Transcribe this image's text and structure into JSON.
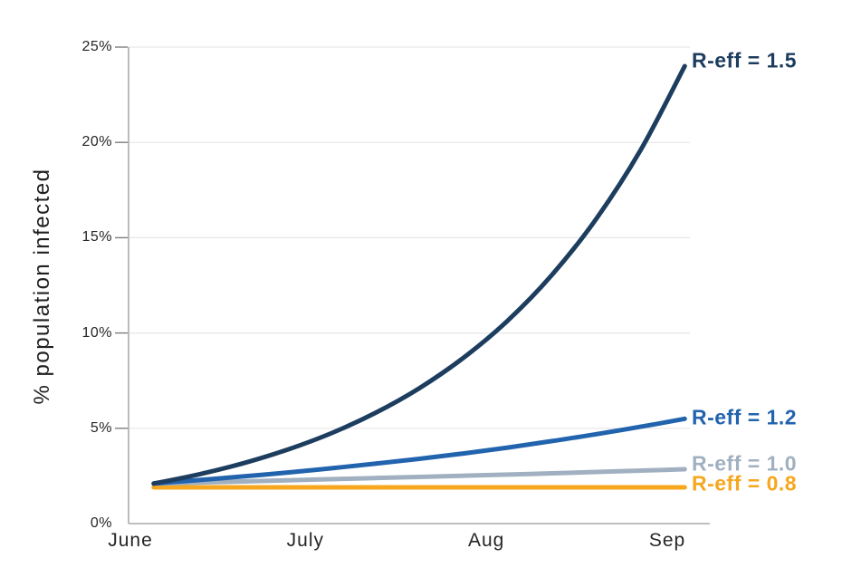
{
  "figure": {
    "background": "#ffffff"
  },
  "chart_data": {
    "type": "line",
    "title": "",
    "xlabel": "",
    "ylabel": "% population infected",
    "x_axis": {
      "unit": "days from June 1",
      "domain_days": [
        0,
        99.6
      ],
      "ticks": [
        {
          "label": "June",
          "day": 0
        },
        {
          "label": "July",
          "day": 30
        },
        {
          "label": "Aug",
          "day": 61
        },
        {
          "label": "Sep",
          "day": 92
        }
      ]
    },
    "y_axis": {
      "ylim": [
        0,
        25
      ],
      "grid": true,
      "ticks": [
        {
          "label": "0%",
          "value": 0
        },
        {
          "label": "5%",
          "value": 5
        },
        {
          "label": "10%",
          "value": 10
        },
        {
          "label": "15%",
          "value": 15
        },
        {
          "label": "20%",
          "value": 20
        },
        {
          "label": "25%",
          "value": 25
        }
      ]
    },
    "legend_position": "labels at line ends (right side)",
    "series": [
      {
        "name": "R-eff = 1.5",
        "color": "#1D3D5F",
        "label_center_y_pct": 24.3,
        "days": [
          4,
          11.58,
          19.17,
          26.75,
          34.33,
          41.92,
          49.5,
          57.08,
          64.67,
          72.25,
          79.83,
          87.42,
          95
        ],
        "values": [
          2.1,
          2.57,
          3.15,
          3.86,
          4.73,
          5.8,
          7.1,
          8.7,
          10.65,
          13.05,
          15.99,
          19.59,
          24.0
        ]
      },
      {
        "name": "R-eff = 1.2",
        "color": "#2263AE",
        "label_center_y_pct": 5.55,
        "days": [
          4,
          11.58,
          19.17,
          26.75,
          34.33,
          41.92,
          49.5,
          57.08,
          64.67,
          72.25,
          79.83,
          87.42,
          95
        ],
        "values": [
          2.1,
          2.28,
          2.47,
          2.67,
          2.9,
          3.14,
          3.4,
          3.68,
          3.99,
          4.33,
          4.69,
          5.08,
          5.5
        ]
      },
      {
        "name": "R-eff = 1.0",
        "color": "#A0B0C0",
        "label_center_y_pct": 3.15,
        "days": [
          4,
          11.58,
          19.17,
          26.75,
          34.33,
          41.92,
          49.5,
          57.08,
          64.67,
          72.25,
          79.83,
          87.42,
          95
        ],
        "values": [
          2.1,
          2.15,
          2.21,
          2.27,
          2.33,
          2.39,
          2.45,
          2.51,
          2.57,
          2.64,
          2.71,
          2.78,
          2.85
        ]
      },
      {
        "name": "R-eff = 0.8",
        "color": "#F6A71E",
        "label_center_y_pct": 2.1,
        "days": [
          4,
          11.58,
          19.17,
          26.75,
          34.33,
          41.92,
          49.5,
          57.08,
          64.67,
          72.25,
          79.83,
          87.42,
          95
        ],
        "values": [
          1.9,
          1.9,
          1.9,
          1.9,
          1.9,
          1.9,
          1.9,
          1.9,
          1.9,
          1.9,
          1.9,
          1.9,
          1.9
        ]
      }
    ]
  },
  "style_colors": {
    "gridline": "#e6e6e6",
    "axis_line": "#999999",
    "tick_mark": "#7d7d7d",
    "tick_text": "#262626"
  }
}
